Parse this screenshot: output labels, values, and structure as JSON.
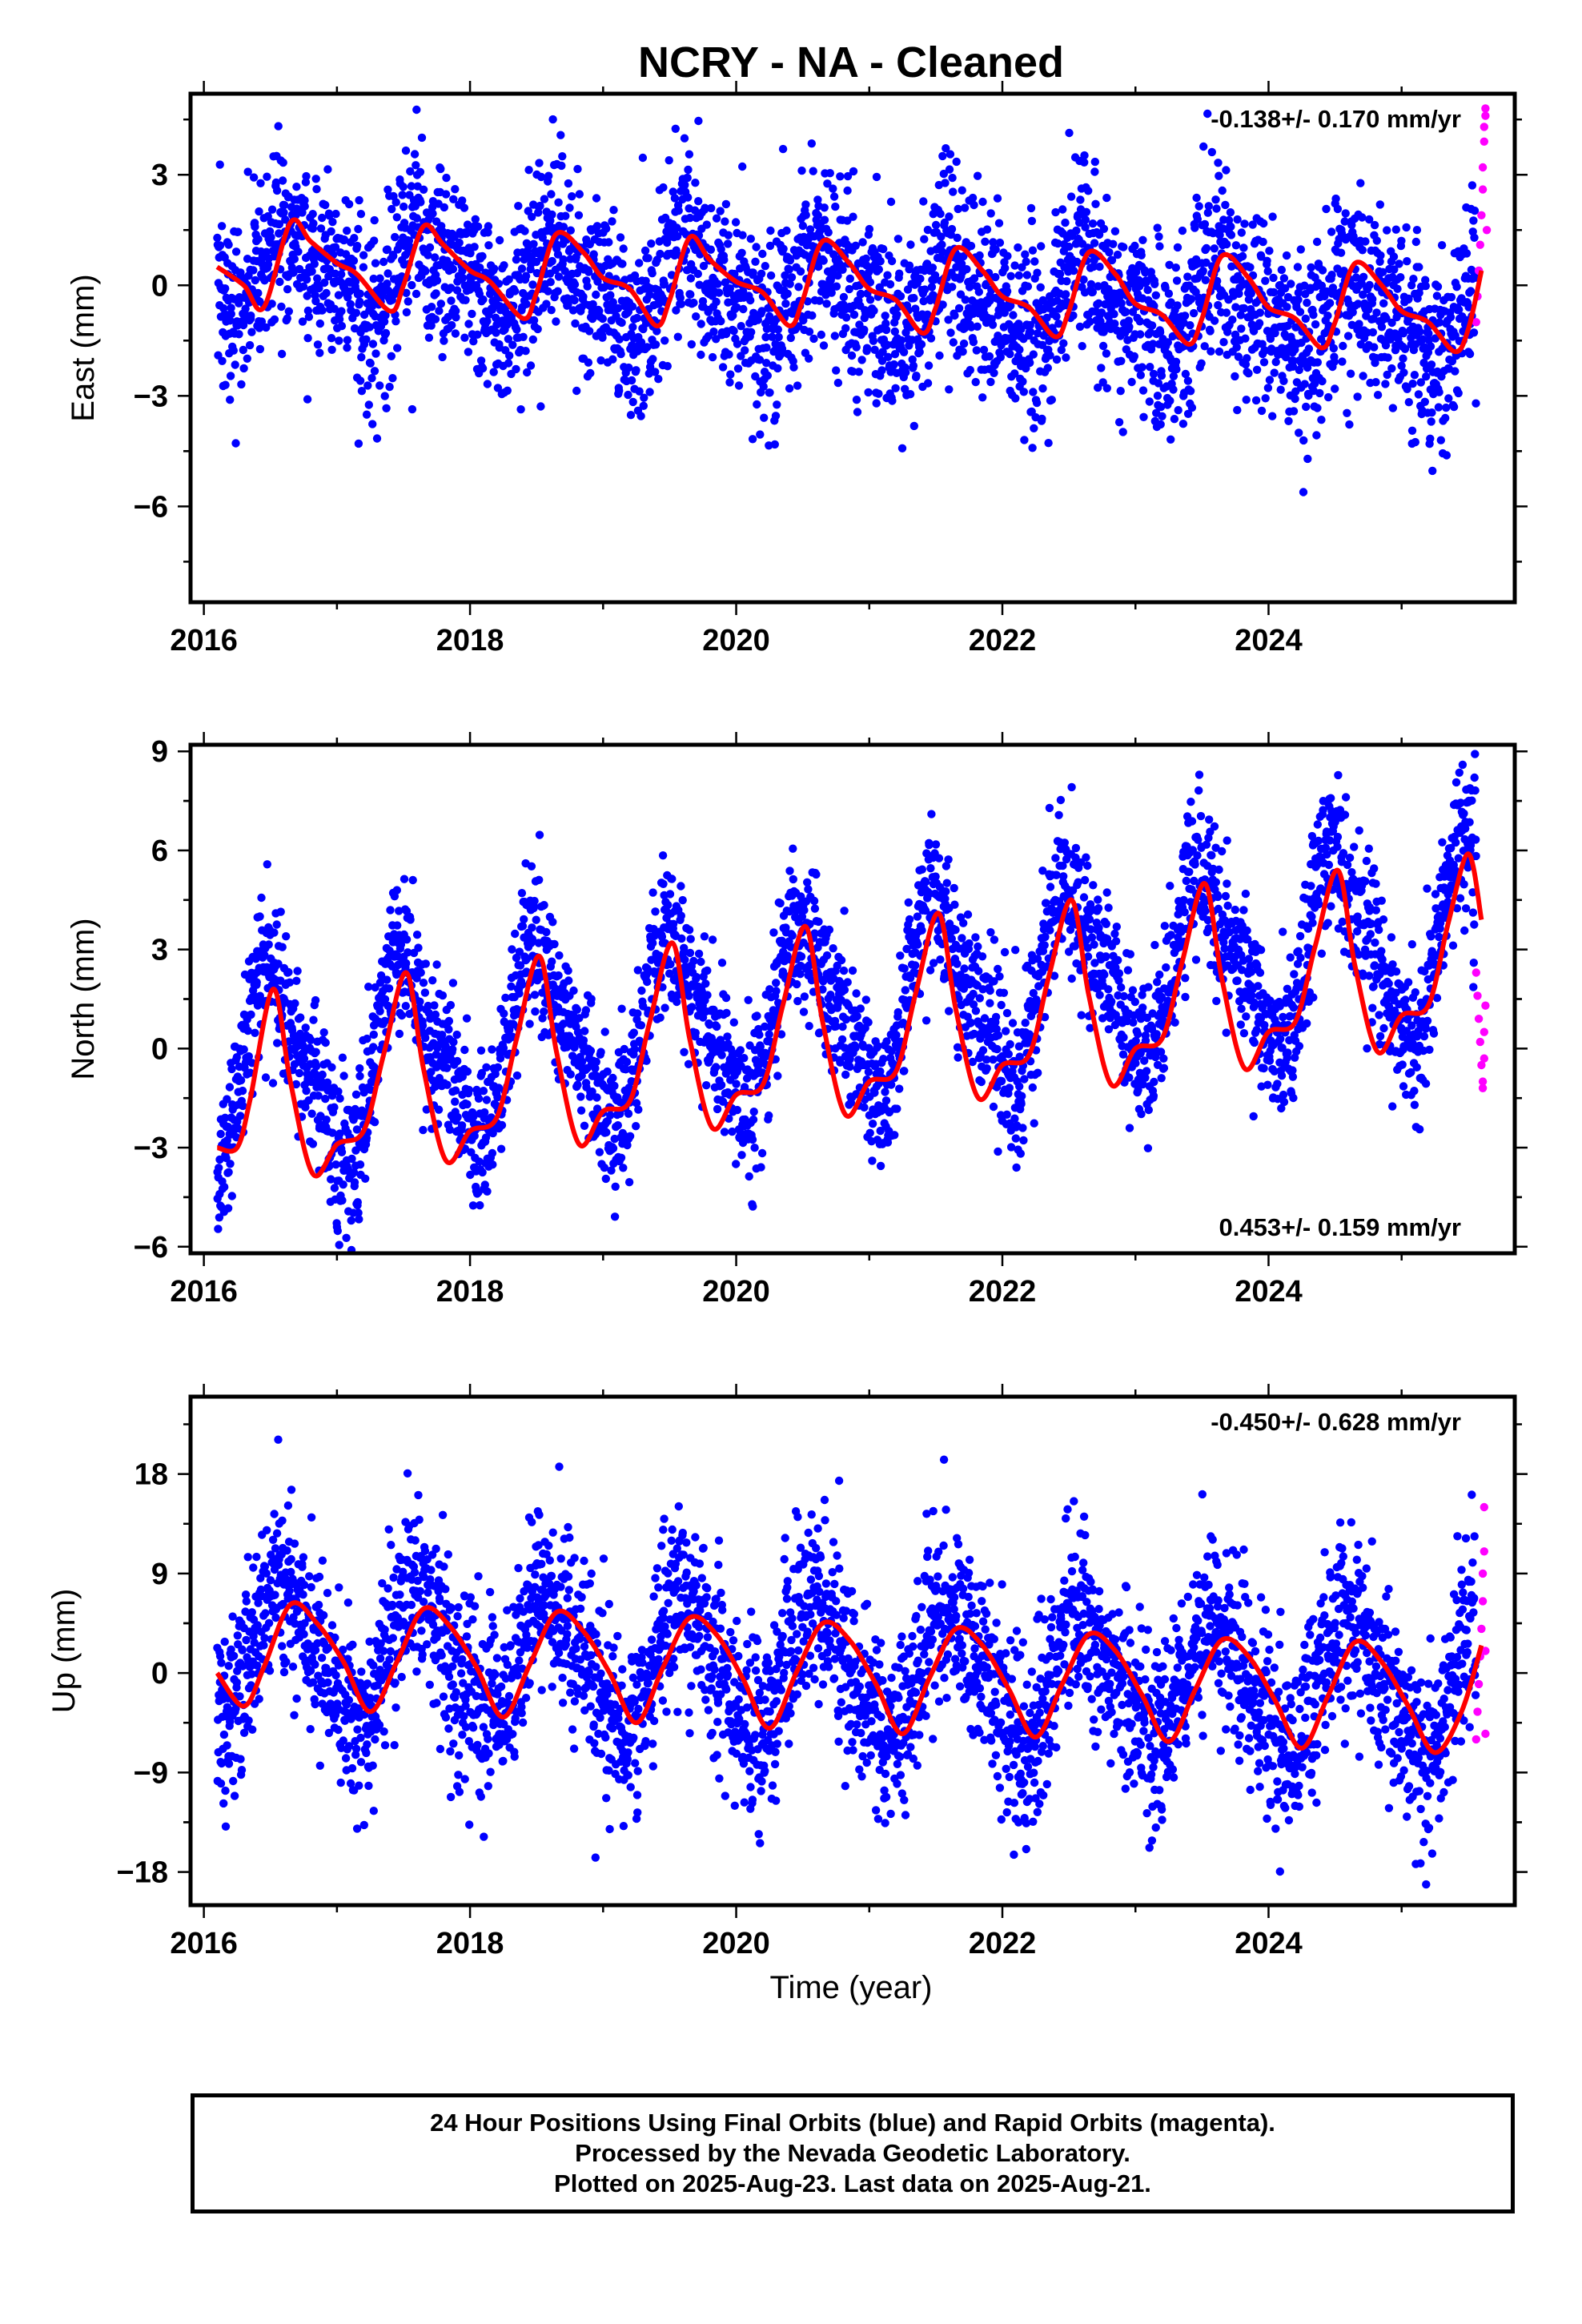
{
  "title": "NCRY  - NA - Cleaned",
  "footer": {
    "line1": "24 Hour Positions Using Final Orbits (blue) and Rapid Orbits (magenta).",
    "line2": "Processed by the Nevada Geodetic Laboratory.",
    "line3": "Plotted on 2025-Aug-23. Last data on 2025-Aug-21."
  },
  "colors": {
    "final_orbits": "#0000ff",
    "rapid_orbits": "#ff00ff",
    "model": "#ff0000"
  },
  "chart_data": [
    {
      "type": "scatter",
      "ylabel": "East (mm)",
      "rate_text": "-0.138+/- 0.170 mm/yr",
      "rate_placement": "top-right",
      "xlim": [
        2015.9,
        2025.85
      ],
      "ylim": [
        -8.6,
        5.2
      ],
      "xticks": [
        2016,
        2018,
        2020,
        2022,
        2024
      ],
      "xtick_labels": [
        "2016",
        "2018",
        "2020",
        "2022",
        "2024"
      ],
      "yticks": [
        -6,
        -3,
        0,
        3
      ],
      "ytick_labels": [
        "−6",
        "−3",
        "0",
        "3"
      ],
      "grid": false,
      "seasonal": {
        "annual_amplitude": 1.0,
        "annual_phase_year": 2016.68,
        "semiannual_amplitude": 0.45,
        "semiannual_phase_year": 2016.55,
        "offset": 0.45,
        "slope": -0.138,
        "scatter_sd": 1.25
      },
      "series": [
        {
          "name": "Final Orbits",
          "color": "#0000ff",
          "x_range": [
            2016.1,
            2025.56
          ],
          "points_per_year": 360
        },
        {
          "name": "Rapid Orbits",
          "color": "#ff00ff",
          "x": [
            2025.56,
            2025.57,
            2025.58,
            2025.59,
            2025.6,
            2025.61,
            2025.61,
            2025.62,
            2025.62,
            2025.63,
            2025.63,
            2025.64
          ],
          "y": [
            -1.0,
            -0.3,
            0.4,
            1.1,
            1.9,
            2.6,
            3.2,
            3.9,
            4.3,
            4.6,
            4.8,
            1.5
          ]
        }
      ],
      "model": {
        "x": [
          2016.1,
          2016.3,
          2016.45,
          2016.65,
          2016.8,
          2017.0,
          2017.15,
          2017.4,
          2017.5,
          2017.65,
          2017.8,
          2018.0,
          2018.15,
          2018.4,
          2018.5,
          2018.65,
          2018.85,
          2019.0,
          2019.2,
          2019.4,
          2019.5,
          2019.65,
          2019.8,
          2020.0,
          2020.2,
          2020.4,
          2020.5,
          2020.65,
          2020.85,
          2021.0,
          2021.2,
          2021.4,
          2021.5,
          2021.65,
          2021.85,
          2022.0,
          2022.2,
          2022.4,
          2022.5,
          2022.65,
          2022.85,
          2023.0,
          2023.2,
          2023.4,
          2023.5,
          2023.65,
          2023.85,
          2024.0,
          2024.2,
          2024.4,
          2024.5,
          2024.65,
          2024.85,
          2025.0,
          2025.2,
          2025.4,
          2025.5,
          2025.6
        ],
        "y": [
          0.5,
          0.0,
          -0.6,
          1.7,
          1.2,
          0.6,
          0.3,
          -0.7,
          0.0,
          1.6,
          1.1,
          0.4,
          0.1,
          -0.9,
          -0.2,
          1.4,
          0.9,
          0.2,
          -0.1,
          -1.1,
          -0.4,
          1.3,
          0.7,
          0.1,
          -0.2,
          -1.1,
          -0.4,
          1.2,
          0.6,
          -0.1,
          -0.4,
          -1.3,
          -0.6,
          1.0,
          0.4,
          -0.3,
          -0.6,
          -1.4,
          -0.7,
          0.9,
          0.3,
          -0.5,
          -0.8,
          -1.6,
          -0.9,
          0.8,
          0.2,
          -0.6,
          -0.9,
          -1.7,
          -1.0,
          0.6,
          0.0,
          -0.7,
          -1.0,
          -1.8,
          -1.2,
          0.4
        ]
      }
    },
    {
      "type": "scatter",
      "ylabel": "North (mm)",
      "rate_text": "0.453+/- 0.159 mm/yr",
      "rate_placement": "bottom-right",
      "xlim": [
        2015.9,
        2025.85
      ],
      "ylim": [
        -6.2,
        9.2
      ],
      "xticks": [
        2016,
        2018,
        2020,
        2022,
        2024
      ],
      "xtick_labels": [
        "2016",
        "2018",
        "2020",
        "2022",
        "2024"
      ],
      "yticks": [
        -6,
        -3,
        0,
        3,
        6,
        9
      ],
      "ytick_labels": [
        "−6",
        "−3",
        "0",
        "3",
        "6",
        "9"
      ],
      "grid": false,
      "seasonal": {
        "annual_amplitude": 2.6,
        "annual_phase_year": 2016.52,
        "semiannual_amplitude": 0.7,
        "semiannual_phase_year": 2016.4,
        "offset": -0.9,
        "slope": 0.453,
        "scatter_sd": 1.15
      },
      "series": [
        {
          "name": "Final Orbits",
          "color": "#0000ff",
          "x_range": [
            2016.1,
            2025.56
          ],
          "points_per_year": 360
        },
        {
          "name": "Rapid Orbits",
          "color": "#ff00ff",
          "x": [
            2025.56,
            2025.57,
            2025.58,
            2025.59,
            2025.6,
            2025.61,
            2025.61,
            2025.62,
            2025.62,
            2025.63
          ],
          "y": [
            2.3,
            1.6,
            0.9,
            0.2,
            -0.5,
            -1.0,
            -1.2,
            -0.3,
            0.5,
            1.3
          ]
        }
      ],
      "model": {
        "x": [
          2016.1,
          2016.25,
          2016.35,
          2016.52,
          2016.65,
          2016.82,
          2017.0,
          2017.2,
          2017.35,
          2017.52,
          2017.65,
          2017.82,
          2018.0,
          2018.2,
          2018.35,
          2018.52,
          2018.65,
          2018.82,
          2019.0,
          2019.2,
          2019.35,
          2019.52,
          2019.65,
          2019.82,
          2020.0,
          2020.2,
          2020.35,
          2020.52,
          2020.65,
          2020.82,
          2021.0,
          2021.2,
          2021.35,
          2021.52,
          2021.65,
          2021.82,
          2022.0,
          2022.2,
          2022.35,
          2022.52,
          2022.65,
          2022.82,
          2023.0,
          2023.2,
          2023.35,
          2023.52,
          2023.65,
          2023.82,
          2024.0,
          2024.2,
          2024.35,
          2024.52,
          2024.65,
          2024.82,
          2025.0,
          2025.2,
          2025.35,
          2025.5,
          2025.6
        ],
        "y": [
          -3.0,
          -3.0,
          -1.5,
          1.8,
          -1.0,
          -3.8,
          -2.9,
          -2.5,
          -0.2,
          2.3,
          -0.6,
          -3.4,
          -2.5,
          -2.1,
          0.3,
          2.8,
          -0.1,
          -2.9,
          -1.9,
          -1.6,
          0.8,
          3.2,
          0.3,
          -2.4,
          -1.4,
          -1.1,
          1.3,
          3.7,
          0.8,
          -2.0,
          -1.0,
          -0.7,
          1.7,
          4.1,
          1.2,
          -1.5,
          -0.5,
          -0.2,
          2.2,
          4.5,
          1.6,
          -1.1,
          0.0,
          0.3,
          2.6,
          5.0,
          2.1,
          -0.6,
          0.5,
          0.8,
          3.1,
          5.4,
          2.5,
          -0.1,
          1.0,
          1.3,
          3.8,
          5.9,
          3.9
        ]
      }
    },
    {
      "type": "scatter",
      "ylabel": "Up (mm)",
      "xlabel": "Time (year)",
      "rate_text": "-0.450+/- 0.628 mm/yr",
      "rate_placement": "top-right",
      "xlim": [
        2015.9,
        2025.85
      ],
      "ylim": [
        -21,
        25
      ],
      "xticks": [
        2016,
        2018,
        2020,
        2022,
        2024
      ],
      "xtick_labels": [
        "2016",
        "2018",
        "2020",
        "2022",
        "2024"
      ],
      "yticks": [
        -18,
        -9,
        0,
        9,
        18
      ],
      "ytick_labels": [
        "−18",
        "−9",
        "0",
        "9",
        "18"
      ],
      "grid": false,
      "seasonal": {
        "annual_amplitude": 5.5,
        "annual_phase_year": 2016.62,
        "semiannual_amplitude": 0.8,
        "semiannual_phase_year": 2016.5,
        "offset": 2.5,
        "slope": -0.45,
        "scatter_sd": 4.2
      },
      "series": [
        {
          "name": "Final Orbits",
          "color": "#0000ff",
          "x_range": [
            2016.1,
            2025.56
          ],
          "points_per_year": 360
        },
        {
          "name": "Rapid Orbits",
          "color": "#ff00ff",
          "x": [
            2025.56,
            2025.57,
            2025.58,
            2025.59,
            2025.6,
            2025.61,
            2025.61,
            2025.62,
            2025.62,
            2025.63,
            2025.63
          ],
          "y": [
            -6.0,
            -3.5,
            -1.0,
            1.5,
            4.0,
            6.5,
            9.0,
            11.0,
            15.0,
            2.0,
            -5.5
          ]
        }
      ],
      "model": {
        "x": [
          2016.1,
          2016.3,
          2016.45,
          2016.65,
          2016.85,
          2017.05,
          2017.25,
          2017.45,
          2017.65,
          2017.85,
          2018.05,
          2018.25,
          2018.45,
          2018.65,
          2018.85,
          2019.05,
          2019.25,
          2019.45,
          2019.65,
          2019.85,
          2020.05,
          2020.25,
          2020.45,
          2020.65,
          2020.85,
          2021.05,
          2021.25,
          2021.45,
          2021.65,
          2021.85,
          2022.05,
          2022.25,
          2022.45,
          2022.65,
          2022.85,
          2023.05,
          2023.25,
          2023.45,
          2023.65,
          2023.85,
          2024.05,
          2024.25,
          2024.45,
          2024.65,
          2024.85,
          2025.05,
          2025.25,
          2025.45,
          2025.6
        ],
        "y": [
          0.0,
          -3.0,
          0.5,
          6.2,
          4.5,
          1.0,
          -3.5,
          1.0,
          5.8,
          4.2,
          0.5,
          -4.0,
          0.8,
          5.5,
          3.8,
          0.0,
          -4.5,
          0.5,
          5.0,
          3.5,
          -0.5,
          -5.0,
          0.0,
          4.5,
          3.0,
          -1.0,
          -5.5,
          -0.5,
          4.0,
          2.5,
          -1.5,
          -5.8,
          -1.0,
          3.5,
          2.0,
          -2.0,
          -6.2,
          -1.5,
          3.0,
          1.5,
          -2.5,
          -6.8,
          -2.0,
          2.8,
          1.0,
          -3.0,
          -7.2,
          -3.5,
          2.5
        ]
      }
    }
  ]
}
